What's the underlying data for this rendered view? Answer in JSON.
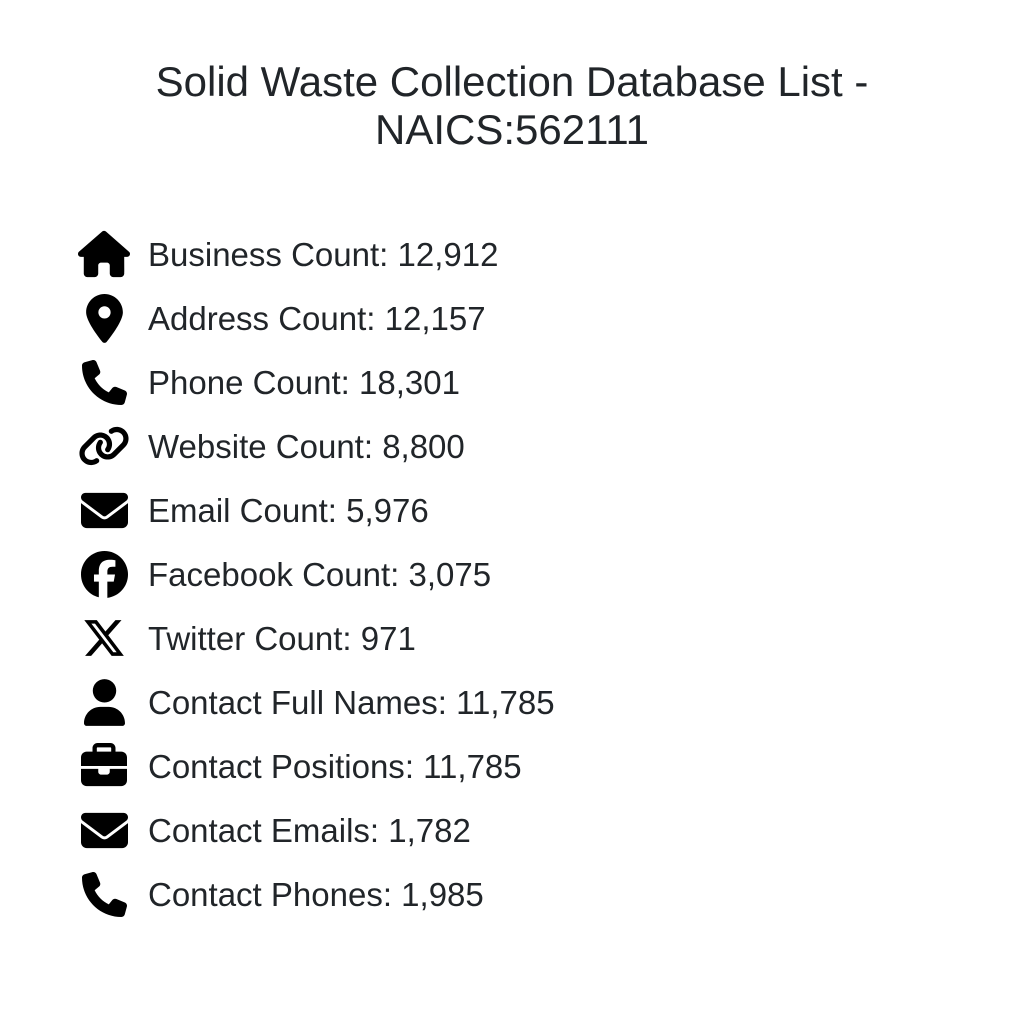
{
  "page_title": "Solid Waste Collection Database List - NAICS:562111",
  "stats": {
    "separator": ": ",
    "items": [
      {
        "icon": "home-icon",
        "label": "Business Count",
        "value": "12,912"
      },
      {
        "icon": "location-pin-icon",
        "label": "Address Count",
        "value": "12,157"
      },
      {
        "icon": "phone-icon",
        "label": "Phone Count",
        "value": "18,301"
      },
      {
        "icon": "link-icon",
        "label": "Website Count",
        "value": "8,800"
      },
      {
        "icon": "envelope-icon",
        "label": "Email Count",
        "value": "5,976"
      },
      {
        "icon": "facebook-icon",
        "label": "Facebook Count",
        "value": "3,075"
      },
      {
        "icon": "x-twitter-icon",
        "label": "Twitter Count",
        "value": "971"
      },
      {
        "icon": "user-icon",
        "label": "Contact Full Names",
        "value": "11,785"
      },
      {
        "icon": "briefcase-icon",
        "label": "Contact Positions",
        "value": "11,785"
      },
      {
        "icon": "envelope-icon",
        "label": "Contact Emails",
        "value": "1,782"
      },
      {
        "icon": "phone-icon",
        "label": "Contact Phones",
        "value": "1,985"
      }
    ]
  },
  "colors": {
    "background": "#ffffff",
    "text": "#212529",
    "icon": "#000000"
  }
}
